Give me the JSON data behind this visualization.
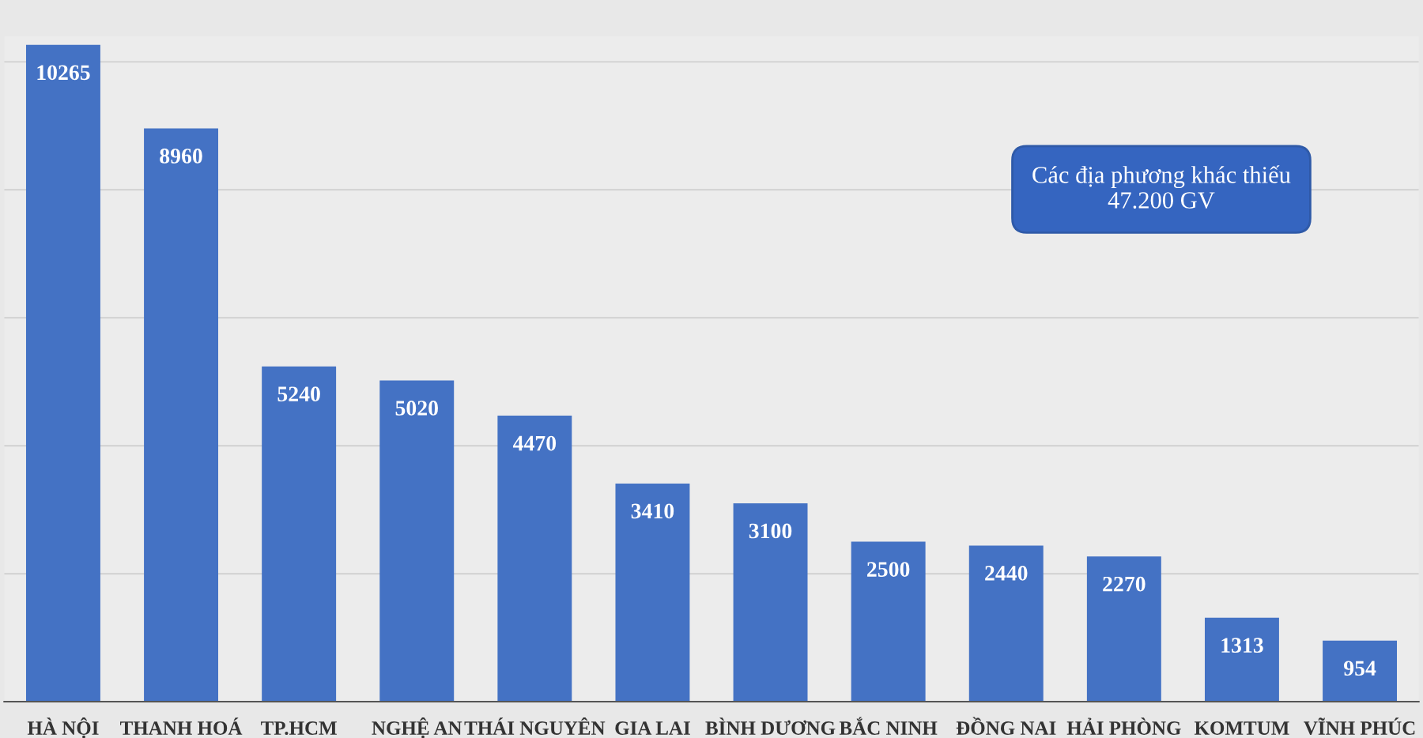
{
  "chart_data": {
    "type": "bar",
    "categories": [
      "HÀ NỘI",
      "THANH HOÁ",
      "TP.HCM",
      "NGHỆ AN",
      "THÁI NGUYÊN",
      "GIA LAI",
      "BÌNH DƯƠNG",
      "BẮC NINH",
      "ĐỒNG NAI",
      "HẢI PHÒNG",
      "KOMTUM",
      "VĨNH PHÚC"
    ],
    "values": [
      10265,
      8960,
      5240,
      5020,
      4470,
      3410,
      3100,
      2500,
      2440,
      2270,
      1313,
      954
    ],
    "color": "#4472c4",
    "data_labels": true,
    "yticks": [
      {
        "value": 0,
        "label": null
      },
      {
        "value": 2000,
        "label": null
      },
      {
        "value": 4000,
        "label": null
      },
      {
        "value": 6000,
        "label": null
      },
      {
        "value": 8000,
        "label": null
      },
      {
        "value": 10000,
        "label": null
      }
    ],
    "tick_labels": "x",
    "grid": "y",
    "legend": false,
    "annotations": [
      "Các địa phương khác thiếu\n47.200 GV"
    ]
  }
}
